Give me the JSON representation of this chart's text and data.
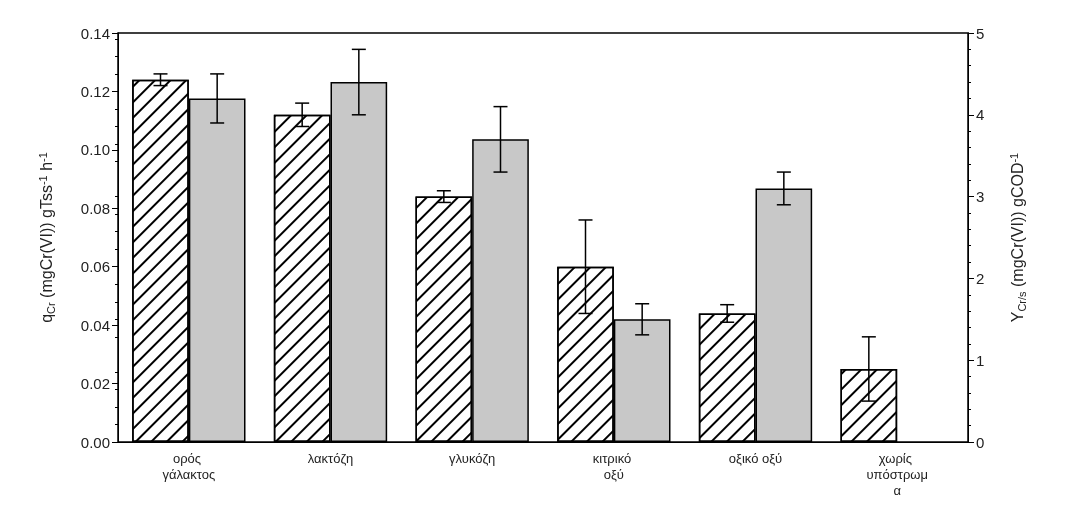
{
  "chart_data": {
    "type": "bar",
    "categories": [
      "ορός γάλακτος",
      "λακτόζη",
      "γλυκόζη",
      "κιτρικό οξύ",
      "οξικό οξύ",
      "χωρίς υπόστρωμα"
    ],
    "series": [
      {
        "color": "#ffffff",
        "values": [
          0.124,
          0.112,
          0.084,
          0.06,
          0.044,
          0.025
        ],
        "errors": [
          0.002,
          0.004,
          0.002,
          0.016,
          0.003,
          0.011
        ]
      },
      {
        "color": "#c8c8c8",
        "axis": "y2",
        "values": [
          4.2,
          4.4,
          3.7,
          1.5,
          3.1,
          null
        ],
        "errors": [
          0.3,
          0.4,
          0.4,
          0.19,
          0.2,
          null
        ]
      }
    ],
    "ylabel": "q$_{Cr}$ (mgCr(VI)) gTss$^{-1}$ h$^{-1}$",
    "y2label": "Y$_{Cr/s}$ (mgCr(VI)) gCOD$^{-1}$",
    "ylim": [
      0,
      0.14
    ],
    "yticks": [
      {
        "value": 0,
        "label": "0.00"
      },
      0.02,
      0.04,
      0.06,
      0.08,
      {
        "value": 0.1,
        "label": "0.10"
      },
      0.12,
      0.14
    ],
    "y2lim": [
      0,
      5
    ],
    "y2ticks": [
      0,
      1,
      2,
      3,
      4,
      5
    ],
    "grid": false
  }
}
